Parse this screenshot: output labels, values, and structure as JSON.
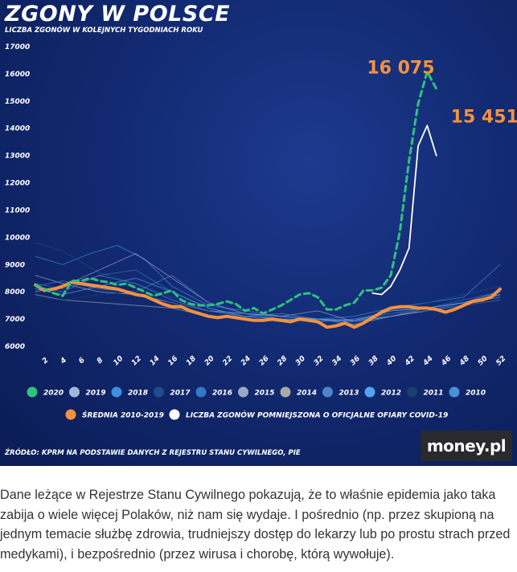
{
  "chart_data": {
    "type": "line",
    "title": "ZGONY W POLSCE",
    "subtitle": "LICZBA ZGONÓW W KOLEJNYCH TYGODNIACH ROKU",
    "source": "ŹRÓDŁO: KPRM NA PODSTAWIE DANYCH Z REJESTRU STANU CYWILNEGO, PIE",
    "ylim": [
      6000,
      17000
    ],
    "y_ticks": [
      "17000",
      "16000",
      "15000",
      "14000",
      "13000",
      "12000",
      "11000",
      "10000",
      "9000",
      "8000",
      "7000",
      "6000"
    ],
    "x_ticks": [
      "2",
      "4",
      "6",
      "8",
      "10",
      "12",
      "14",
      "16",
      "18",
      "20",
      "22",
      "24",
      "26",
      "28",
      "30",
      "32",
      "34",
      "36",
      "38",
      "40",
      "42",
      "44",
      "46",
      "48",
      "50",
      "52"
    ],
    "x_range": [
      1,
      52
    ],
    "grid": false,
    "legend_placement": "bottom",
    "annotations": [
      {
        "text": "16 075",
        "week": 44,
        "value": 16075
      },
      {
        "text": "15 451",
        "week": 45,
        "value": 15451
      }
    ],
    "series": [
      {
        "name": "2020",
        "color": "#2ec27e",
        "style": "dashed",
        "x": [
          1,
          2,
          3,
          4,
          5,
          6,
          7,
          8,
          9,
          10,
          11,
          12,
          13,
          14,
          15,
          16,
          17,
          18,
          19,
          20,
          21,
          22,
          23,
          24,
          25,
          26,
          27,
          28,
          29,
          30,
          31,
          32,
          33,
          34,
          35,
          36,
          37,
          38,
          39,
          40,
          41,
          42,
          43,
          44,
          45
        ],
        "values": [
          8250,
          8100,
          7950,
          7850,
          8400,
          8400,
          8500,
          8400,
          8350,
          8250,
          8300,
          8150,
          8000,
          7850,
          7950,
          8050,
          7700,
          7550,
          7500,
          7500,
          7550,
          7650,
          7550,
          7300,
          7400,
          7200,
          7350,
          7500,
          7700,
          7900,
          7950,
          7800,
          7350,
          7350,
          7500,
          7600,
          8050,
          8050,
          8150,
          8600,
          10200,
          12800,
          14900,
          16075,
          15451
        ]
      },
      {
        "name": "2019",
        "color": "#a3b6d9",
        "style": "solid",
        "x": [
          1,
          4,
          8,
          12,
          16,
          20,
          24,
          28,
          32,
          36,
          40,
          44,
          48,
          52
        ],
        "values": [
          8600,
          8300,
          8000,
          7900,
          7600,
          7300,
          7200,
          7100,
          7000,
          6950,
          7300,
          7400,
          7600,
          8000
        ]
      },
      {
        "name": "2018",
        "color": "#3d8fe0",
        "style": "solid",
        "x": [
          1,
          4,
          7,
          10,
          13,
          16,
          20,
          24,
          28,
          32,
          36,
          40,
          44,
          48,
          52
        ],
        "values": [
          9300,
          9000,
          9400,
          9700,
          9200,
          8200,
          7500,
          7300,
          7100,
          7000,
          7100,
          7400,
          7600,
          7800,
          9000
        ]
      },
      {
        "name": "2017",
        "color": "#1f4d8c",
        "style": "solid",
        "x": [
          1,
          4,
          8,
          12,
          16,
          20,
          24,
          28,
          32,
          36,
          40,
          44,
          48,
          52
        ],
        "values": [
          9800,
          9500,
          8700,
          8300,
          7800,
          7500,
          7200,
          7000,
          6900,
          7000,
          7300,
          7600,
          7900,
          8200
        ]
      },
      {
        "name": "2016",
        "color": "#3377c8",
        "style": "solid",
        "x": [
          1,
          4,
          8,
          12,
          16,
          20,
          24,
          28,
          32,
          36,
          40,
          44,
          48,
          52
        ],
        "values": [
          8300,
          8100,
          8600,
          8800,
          8000,
          7400,
          7100,
          7000,
          6950,
          6900,
          7200,
          7400,
          7700,
          8000
        ]
      },
      {
        "name": "2015",
        "color": "#9aa9c4",
        "style": "solid",
        "x": [
          1,
          4,
          8,
          12,
          16,
          20,
          24,
          28,
          32,
          36,
          40,
          44,
          48,
          52
        ],
        "values": [
          8000,
          8200,
          8800,
          9400,
          8500,
          7600,
          7200,
          7100,
          7300,
          6900,
          7100,
          7300,
          7500,
          7900
        ]
      },
      {
        "name": "2014",
        "color": "#a9a9a9",
        "style": "solid",
        "x": [
          1,
          4,
          8,
          12,
          16,
          20,
          24,
          28,
          32,
          36,
          40,
          44,
          48,
          52
        ],
        "values": [
          7900,
          7700,
          7600,
          7500,
          7400,
          7100,
          7000,
          6900,
          7000,
          6800,
          7100,
          7300,
          7500,
          7700
        ]
      },
      {
        "name": "2013",
        "color": "#4f84c9",
        "style": "solid",
        "x": [
          1,
          4,
          8,
          12,
          16,
          20,
          24,
          28,
          32,
          36,
          40,
          44,
          48,
          52
        ],
        "values": [
          8200,
          8400,
          8100,
          8000,
          8600,
          7600,
          7200,
          7000,
          6900,
          7000,
          7200,
          7300,
          7600,
          7900
        ]
      },
      {
        "name": "2012",
        "color": "#52a5ee",
        "style": "solid",
        "x": [
          1,
          4,
          8,
          12,
          16,
          20,
          24,
          28,
          32,
          36,
          40,
          44,
          48,
          52
        ],
        "values": [
          8100,
          7900,
          8200,
          8500,
          8000,
          7400,
          7100,
          7000,
          7000,
          6900,
          7300,
          7400,
          7600,
          7800
        ]
      },
      {
        "name": "2011",
        "color": "#1b3f73",
        "style": "solid",
        "x": [
          1,
          4,
          8,
          12,
          16,
          20,
          24,
          28,
          32,
          36,
          40,
          44,
          48,
          52
        ],
        "values": [
          7800,
          7700,
          7900,
          8000,
          7600,
          7300,
          7000,
          6900,
          6800,
          6900,
          7200,
          7300,
          7500,
          7700
        ]
      },
      {
        "name": "2010",
        "color": "#4a8fd8",
        "style": "solid",
        "x": [
          1,
          4,
          8,
          12,
          16,
          20,
          24,
          28,
          32,
          36,
          40,
          44,
          48,
          52
        ],
        "values": [
          8200,
          8000,
          8600,
          8300,
          7700,
          7300,
          7100,
          7200,
          7000,
          6950,
          7100,
          7400,
          7600,
          7900
        ]
      },
      {
        "name": "ŚREDNIA 2010-2019",
        "color": "#f5923e",
        "style": "thick",
        "x": [
          1,
          2,
          3,
          4,
          5,
          6,
          7,
          8,
          9,
          10,
          11,
          12,
          13,
          14,
          15,
          16,
          17,
          18,
          19,
          20,
          21,
          22,
          23,
          24,
          25,
          26,
          27,
          28,
          29,
          30,
          31,
          32,
          33,
          34,
          35,
          36,
          37,
          38,
          39,
          40,
          41,
          42,
          43,
          44,
          45,
          46,
          47,
          48,
          49,
          50,
          51,
          52
        ],
        "values": [
          8250,
          8050,
          8100,
          8200,
          8350,
          8300,
          8250,
          8200,
          8150,
          8100,
          8000,
          7900,
          7850,
          7700,
          7550,
          7450,
          7450,
          7300,
          7200,
          7100,
          7050,
          7100,
          7050,
          7000,
          6950,
          6950,
          7000,
          6950,
          6900,
          7000,
          6950,
          6900,
          6700,
          6750,
          6850,
          6700,
          6850,
          7050,
          7250,
          7400,
          7450,
          7450,
          7400,
          7400,
          7350,
          7250,
          7350,
          7500,
          7650,
          7700,
          7800,
          8100
        ]
      },
      {
        "name": "LICZBA ZGONÓW POMNIEJSZONA O OFICJALNE OFIARY COVID-19",
        "color": "#ffffff",
        "style": "solid",
        "x": [
          38,
          39,
          40,
          41,
          42,
          43,
          44,
          45
        ],
        "values": [
          7950,
          7900,
          8200,
          8800,
          9600,
          13350,
          14100,
          13000
        ]
      }
    ]
  },
  "logo_text": "money.pl",
  "article": {
    "paragraph": "Dane leżące w Rejestrze Stanu Cywilnego pokazują, że to właśnie epidemia jako taka zabija o wiele więcej Polaków, niż nam się wydaje. I pośrednio (np. przez skupioną na jednym temacie służbę zdrowia, trudniejszy dostęp do lekarzy lub po prostu strach przed medykami), i bezpośrednio (przez wirusa i chorobę, którą wywołuje)."
  }
}
